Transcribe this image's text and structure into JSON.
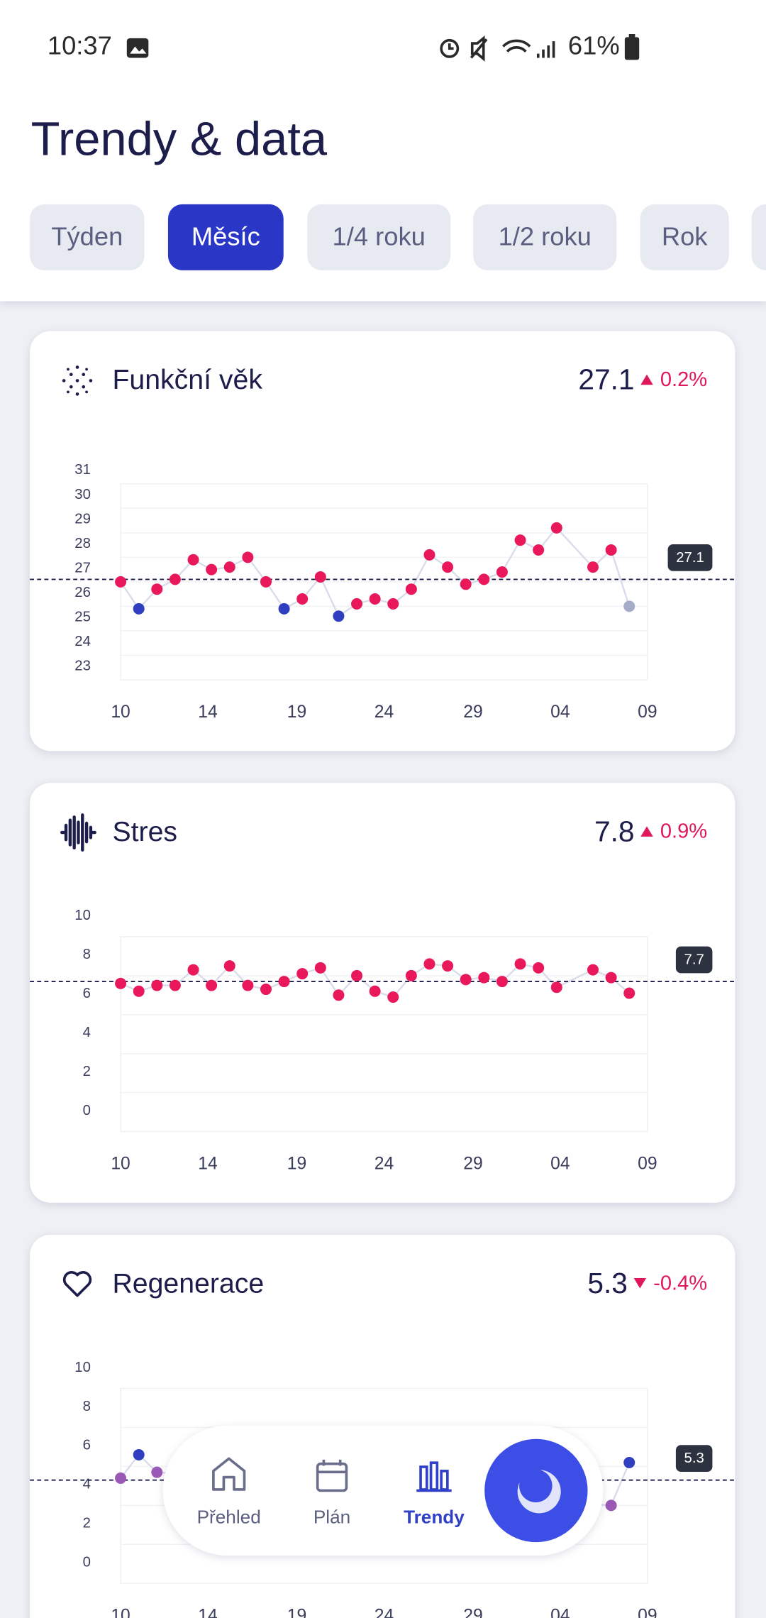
{
  "status_bar": {
    "time": "10:37",
    "battery": "61%"
  },
  "header": {
    "title": "Trendy & data"
  },
  "tabs": [
    "Týden",
    "Měsíc",
    "1/4 roku",
    "1/2 roku",
    "Rok"
  ],
  "selected_tab": 1,
  "chart_data": [
    {
      "type": "line",
      "title": "Funkční věk",
      "current": 27.1,
      "change_label": "0.2%",
      "trend": "up",
      "reference": 27.1,
      "x": [
        0,
        1,
        2,
        3,
        4,
        5,
        6,
        7,
        8,
        9,
        10,
        11,
        12,
        13,
        14,
        15,
        16,
        17,
        18,
        19,
        20,
        21,
        22,
        23,
        24,
        26,
        27,
        28
      ],
      "values": [
        27.0,
        25.9,
        26.7,
        27.1,
        27.9,
        27.5,
        27.6,
        28.0,
        27.0,
        25.9,
        26.3,
        27.2,
        25.6,
        26.1,
        26.3,
        26.1,
        26.7,
        28.1,
        27.6,
        26.9,
        27.1,
        27.4,
        28.7,
        28.3,
        29.2,
        27.6,
        28.3,
        26.0
      ],
      "point_colors": [
        "#e8185a",
        "#2f3fc0",
        "#e8185a",
        "#e8185a",
        "#e8185a",
        "#e8185a",
        "#e8185a",
        "#e8185a",
        "#e8185a",
        "#2f3fc0",
        "#e8185a",
        "#e8185a",
        "#2f3fc0",
        "#e8185a",
        "#e8185a",
        "#e8185a",
        "#e8185a",
        "#e8185a",
        "#e8185a",
        "#e8185a",
        "#e8185a",
        "#e8185a",
        "#e8185a",
        "#e8185a",
        "#e8185a",
        "#e8185a",
        "#e8185a",
        "#a4acc8"
      ],
      "line_color": "#d8dbea",
      "xlim": [
        0,
        29
      ],
      "xticks": [
        {
          "value": 0,
          "label": "10"
        },
        {
          "value": 4.8,
          "label": "14"
        },
        {
          "value": 9.7,
          "label": "19"
        },
        {
          "value": 14.5,
          "label": "24"
        },
        {
          "value": 19.4,
          "label": "29"
        },
        {
          "value": 24.2,
          "label": "04"
        },
        {
          "value": 29,
          "label": "09"
        }
      ],
      "ylim": [
        23,
        31
      ],
      "yticks": [
        23,
        24,
        25,
        26,
        27,
        28,
        29,
        30,
        31
      ]
    },
    {
      "type": "line",
      "title": "Stres",
      "current": 7.8,
      "change_label": "0.9%",
      "trend": "up",
      "reference": 7.7,
      "x": [
        0,
        1,
        2,
        3,
        4,
        5,
        6,
        7,
        8,
        9,
        10,
        11,
        12,
        13,
        14,
        15,
        16,
        17,
        18,
        19,
        20,
        21,
        22,
        23,
        24,
        26,
        27,
        28
      ],
      "values": [
        7.6,
        7.2,
        7.5,
        7.5,
        8.3,
        7.5,
        8.5,
        7.5,
        7.3,
        7.7,
        8.1,
        8.4,
        7.0,
        8.0,
        7.2,
        6.9,
        8.0,
        8.6,
        8.5,
        7.8,
        7.9,
        7.7,
        8.6,
        8.4,
        7.4,
        8.3,
        7.9,
        7.1
      ],
      "point_colors": [
        "#e8185a",
        "#e8185a",
        "#e8185a",
        "#e8185a",
        "#e8185a",
        "#e8185a",
        "#e8185a",
        "#e8185a",
        "#e8185a",
        "#e8185a",
        "#e8185a",
        "#e8185a",
        "#e8185a",
        "#e8185a",
        "#e8185a",
        "#e8185a",
        "#e8185a",
        "#e8185a",
        "#e8185a",
        "#e8185a",
        "#e8185a",
        "#e8185a",
        "#e8185a",
        "#e8185a",
        "#e8185a",
        "#e8185a",
        "#e8185a",
        "#e8185a"
      ],
      "line_color": "#d8dbea",
      "xlim": [
        0,
        29
      ],
      "xticks": [
        {
          "value": 0,
          "label": "10"
        },
        {
          "value": 4.8,
          "label": "14"
        },
        {
          "value": 9.7,
          "label": "19"
        },
        {
          "value": 14.5,
          "label": "24"
        },
        {
          "value": 19.4,
          "label": "29"
        },
        {
          "value": 24.2,
          "label": "04"
        },
        {
          "value": 29,
          "label": "09"
        }
      ],
      "ylim": [
        0,
        10
      ],
      "yticks": [
        0,
        2,
        4,
        6,
        8,
        10
      ]
    },
    {
      "type": "line",
      "title": "Regenerace",
      "current": 5.3,
      "change_label": "-0.4%",
      "trend": "down",
      "reference": 5.3,
      "x": [
        0,
        1,
        2,
        27,
        28
      ],
      "values": [
        5.4,
        6.6,
        5.7,
        4.0,
        6.2
      ],
      "point_colors": [
        "#9b59b6",
        "#2f3fc0",
        "#9b59b6",
        "#9b59b6",
        "#2f3fc0"
      ],
      "line_color": "#d8dbea",
      "xlim": [
        0,
        29
      ],
      "xticks": [
        {
          "value": 0,
          "label": "10"
        },
        {
          "value": 4.8,
          "label": "14"
        },
        {
          "value": 9.7,
          "label": "19"
        },
        {
          "value": 14.5,
          "label": "24"
        },
        {
          "value": 19.4,
          "label": "29"
        },
        {
          "value": 24.2,
          "label": "04"
        },
        {
          "value": 29,
          "label": "09"
        }
      ],
      "ylim": [
        0,
        10
      ],
      "yticks": [
        0,
        2,
        4,
        6,
        8,
        10
      ]
    }
  ],
  "nav": [
    "Přehled",
    "Plán",
    "Trendy"
  ],
  "selected_nav": 2
}
